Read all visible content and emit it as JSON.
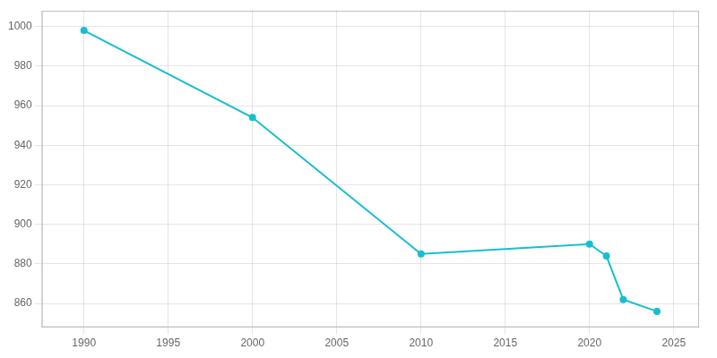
{
  "chart_data": {
    "type": "line",
    "x": [
      1990,
      2000,
      2010,
      2020,
      2021,
      2022,
      2024
    ],
    "values": [
      998,
      954,
      885,
      890,
      884,
      862,
      856
    ],
    "color": "#17becf",
    "marker": "circle",
    "xlim": [
      1987.5,
      2026.5
    ],
    "xticks": [
      1990,
      1995,
      2000,
      2005,
      2010,
      2015,
      2020,
      2025
    ],
    "ylim": [
      848,
      1008
    ],
    "yticks": [
      860,
      880,
      900,
      920,
      940,
      960,
      980,
      1000
    ],
    "grid": true
  }
}
